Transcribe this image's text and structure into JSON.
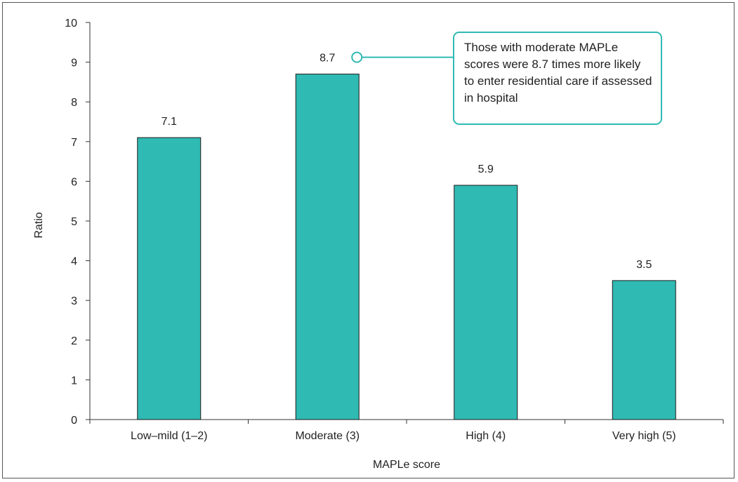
{
  "chart_data": {
    "type": "bar",
    "categories": [
      "Low–mild (1–2)",
      "Moderate (3)",
      "High (4)",
      "Very high (5)"
    ],
    "values": [
      7.1,
      8.7,
      5.9,
      3.5
    ],
    "value_labels": [
      "7.1",
      "8.7",
      "5.9",
      "3.5"
    ],
    "xlabel": "MAPLe score",
    "ylabel": "Ratio",
    "ylim": [
      0,
      10
    ],
    "yticks": [
      0,
      1,
      2,
      3,
      4,
      5,
      6,
      7,
      8,
      9,
      10
    ],
    "grid": false,
    "bar_color": "#2fbab3",
    "annotation": {
      "text": "Those with moderate MAPLe scores were 8.7 times more likely to enter residential care if assessed in hospital",
      "target_category": "Moderate (3)",
      "color": "#2fbab3"
    }
  }
}
